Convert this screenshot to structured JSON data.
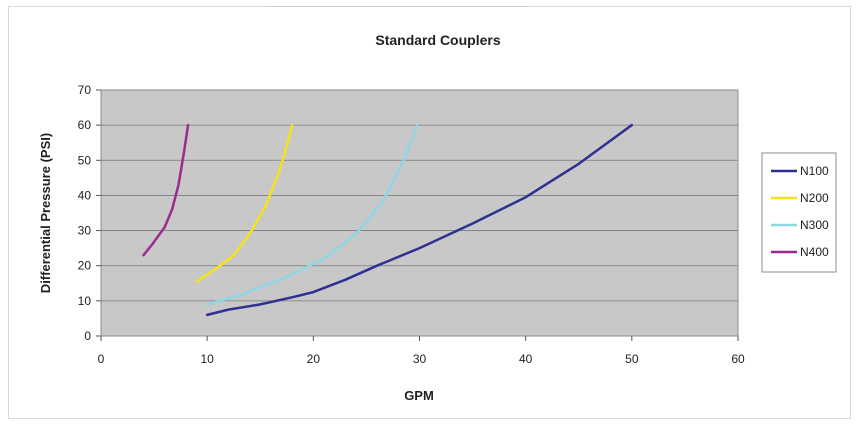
{
  "chart_data": {
    "type": "line",
    "title": "Standard Couplers",
    "xlabel": "GPM",
    "ylabel": "Differential Pressure (PSI)",
    "xlim": [
      0,
      60
    ],
    "ylim": [
      0,
      70
    ],
    "xticks": [
      "0",
      "10",
      "20",
      "30",
      "40",
      "50",
      "60"
    ],
    "yticks": [
      "0",
      "10",
      "20",
      "30",
      "40",
      "50",
      "60",
      "70"
    ],
    "grid": true,
    "legend_position": "right",
    "plot_background": "#c8c8c8",
    "series": [
      {
        "name": "N100",
        "color": "#2e3192",
        "points": [
          [
            10,
            6
          ],
          [
            12,
            7.5
          ],
          [
            15,
            9
          ],
          [
            18,
            11
          ],
          [
            20,
            12.5
          ],
          [
            23,
            16
          ],
          [
            26,
            20
          ],
          [
            30,
            25
          ],
          [
            35,
            32
          ],
          [
            40,
            39.5
          ],
          [
            45,
            49
          ],
          [
            50,
            60
          ]
        ]
      },
      {
        "name": "N200",
        "color": "#f5e31a",
        "points": [
          [
            9,
            15.5
          ],
          [
            11,
            19.5
          ],
          [
            12.5,
            23
          ],
          [
            14,
            29
          ],
          [
            15.5,
            37
          ],
          [
            16.8,
            47
          ],
          [
            17.5,
            54
          ],
          [
            18,
            60
          ]
        ]
      },
      {
        "name": "N300",
        "color": "#8fd7e6",
        "points": [
          [
            10,
            9
          ],
          [
            13,
            11.5
          ],
          [
            16,
            15
          ],
          [
            18,
            17.5
          ],
          [
            21,
            22
          ],
          [
            24,
            29
          ],
          [
            26.5,
            38
          ],
          [
            28.5,
            50
          ],
          [
            29.8,
            60
          ]
        ]
      },
      {
        "name": "N400",
        "color": "#9b2c8e",
        "points": [
          [
            4,
            23
          ],
          [
            4.8,
            26
          ],
          [
            6,
            31
          ],
          [
            6.7,
            36
          ],
          [
            7.3,
            43
          ],
          [
            7.8,
            52
          ],
          [
            8.2,
            60
          ]
        ]
      }
    ]
  }
}
